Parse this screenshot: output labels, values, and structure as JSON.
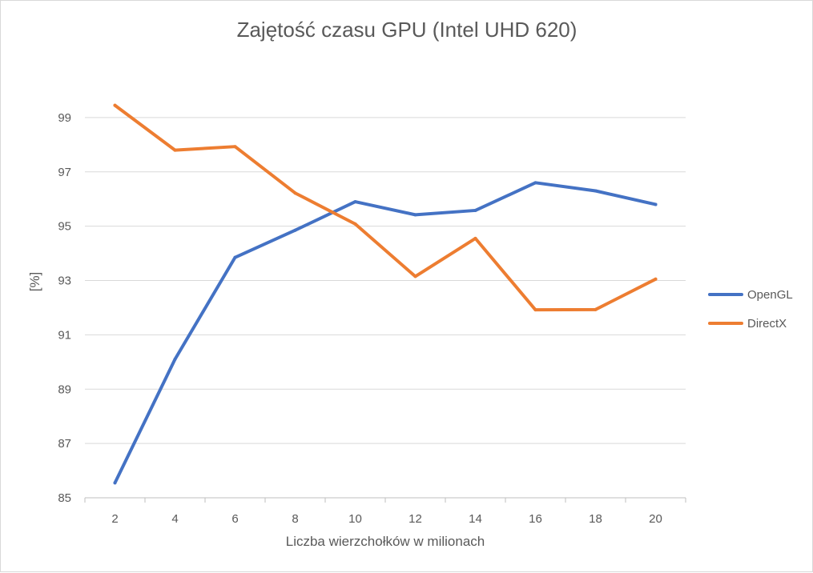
{
  "chart_data": {
    "type": "line",
    "title": "Zajętość czasu GPU (Intel UHD 620)",
    "xlabel": "Liczba wierzchołków w milionach",
    "ylabel": "[%]",
    "x": [
      2,
      4,
      6,
      8,
      10,
      12,
      14,
      16,
      18,
      20
    ],
    "ylim": [
      85,
      101
    ],
    "yticks": [
      85,
      87,
      89,
      91,
      93,
      95,
      97,
      99
    ],
    "grid": true,
    "legend_position": "right",
    "series": [
      {
        "name": "OpenGL",
        "color": "#4472c4",
        "values": [
          85.55,
          90.1,
          93.85,
          94.85,
          95.9,
          95.42,
          95.58,
          96.6,
          96.3,
          95.8
        ]
      },
      {
        "name": "DirectX",
        "color": "#ed7d31",
        "values": [
          99.45,
          97.8,
          97.93,
          96.22,
          95.08,
          93.15,
          94.55,
          91.92,
          91.93,
          93.05
        ]
      }
    ]
  }
}
